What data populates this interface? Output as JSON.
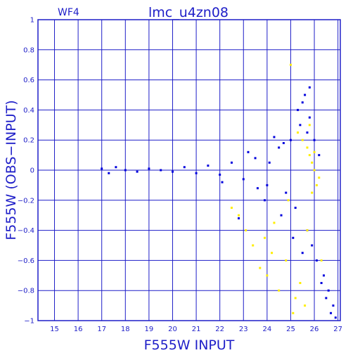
{
  "chart_data": {
    "type": "scatter",
    "panel_label": "WF4",
    "title": "lmc_u4zn08",
    "xlabel": "F555W INPUT",
    "ylabel": "F555W (OBS−INPUT)",
    "xlim": [
      14.3,
      27.1
    ],
    "ylim": [
      -1,
      1
    ],
    "xticks": [
      "15",
      "16",
      "17",
      "18",
      "19",
      "20",
      "21",
      "22",
      "23",
      "24",
      "25",
      "26",
      "27"
    ],
    "yticks": [
      "1",
      "0.8",
      "0.6",
      "0.4",
      "0.2",
      "0",
      "−0.2",
      "−0.4",
      "−0.6",
      "−0.8",
      "−1"
    ],
    "grid": true,
    "colors": {
      "axes": "#1e1ec8",
      "main_points": "#0000dd",
      "flagged_points": "#ffee00"
    },
    "series": [
      {
        "color": "#0000dd",
        "x": [
          17.0,
          17.3,
          17.6,
          18.0,
          18.5,
          19.0,
          19.5,
          20.0,
          20.5,
          21.0,
          21.5,
          22.0,
          22.5,
          23.0,
          23.5,
          24.0,
          24.5,
          24.8,
          25.0,
          25.2,
          25.4,
          25.5,
          25.6,
          25.7,
          25.8,
          25.9,
          26.0,
          26.1,
          26.2,
          26.4,
          26.6,
          26.8,
          22.8,
          23.2,
          23.9,
          24.3,
          24.6,
          25.3,
          25.5,
          25.8,
          26.3,
          26.5,
          26.7,
          24.1,
          25.1,
          23.6,
          26.9,
          25.7,
          24.7,
          22.1
        ],
        "y": [
          0.01,
          -0.02,
          0.02,
          0.0,
          -0.01,
          0.01,
          0.0,
          -0.01,
          0.02,
          -0.02,
          0.03,
          -0.03,
          0.05,
          -0.06,
          0.08,
          -0.1,
          0.15,
          -0.15,
          0.2,
          -0.25,
          0.3,
          0.45,
          0.5,
          -0.4,
          0.35,
          -0.5,
          0.2,
          -0.6,
          0.1,
          -0.7,
          -0.8,
          -0.9,
          -0.32,
          0.12,
          -0.2,
          0.22,
          -0.3,
          0.4,
          -0.55,
          0.55,
          -0.75,
          -0.85,
          -0.95,
          0.05,
          -0.45,
          -0.12,
          -0.98,
          0.25,
          0.18,
          -0.08
        ]
      },
      {
        "color": "#ffee00",
        "x": [
          22.5,
          22.8,
          23.1,
          23.4,
          23.7,
          24.0,
          24.2,
          24.5,
          24.8,
          25.0,
          25.3,
          25.5,
          25.7,
          25.8,
          25.9,
          26.0,
          26.1,
          26.2,
          25.6,
          25.4,
          25.2,
          24.9,
          25.8,
          26.0,
          25.9,
          25.7,
          24.3,
          23.9,
          25.1,
          26.3
        ],
        "y": [
          -0.25,
          -0.3,
          -0.4,
          -0.5,
          -0.65,
          -0.7,
          -0.55,
          -0.8,
          -0.6,
          0.7,
          0.25,
          0.2,
          0.15,
          0.1,
          0.05,
          0.0,
          -0.1,
          -0.05,
          -0.9,
          -0.75,
          -0.85,
          -0.2,
          0.3,
          0.12,
          -0.15,
          -0.4,
          -0.35,
          -0.45,
          -0.95,
          -0.6
        ]
      }
    ]
  }
}
